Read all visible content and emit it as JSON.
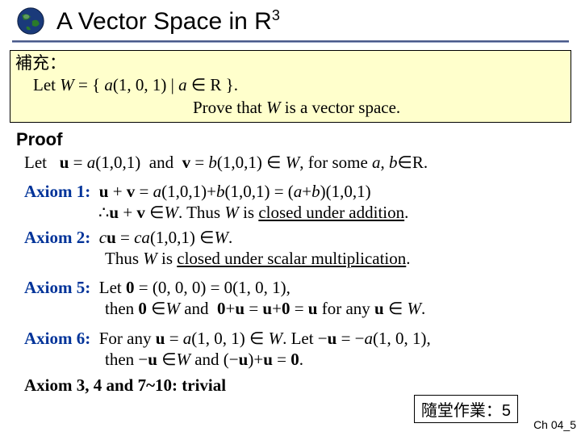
{
  "header": {
    "title_html": "A Vector Space in R<sup>3</sup>",
    "globe": {
      "ocean_color": "#1a3a7a",
      "land_color": "#2a7a2a",
      "shadow_color": "#0a1a3a"
    },
    "rule_color": "#4a5a8a"
  },
  "supplement": {
    "label": "補充：",
    "line1": "Let <span class='italic'>W</span> = { <span class='italic'>a</span>(1, 0, 1) | <span class='italic'>a</span> ∈ R }.",
    "line2": "Prove that <span class='italic'>W</span> is a vector space.",
    "bg_color": "#ffffcc"
  },
  "proof": {
    "label": "Proof",
    "let_line": "Let&nbsp;&nbsp; <span class='bold'>u</span> = <span class='italic'>a</span>(1,0,1) &nbsp;and&nbsp; <span class='bold'>v</span> = <span class='italic'>b</span>(1,0,1) ∈ <span class='italic'>W</span>, for some <span class='italic'>a</span>, <span class='italic'>b</span>∈R."
  },
  "axioms": {
    "a1": {
      "label": "Axiom 1:",
      "expr": "<span class='bold'>u</span> + <span class='bold'>v</span> = <span class='italic'>a</span>(1,0,1)+<span class='italic'>b</span>(1,0,1) = (<span class='italic'>a</span>+<span class='italic'>b</span>)(1,0,1)",
      "concl": "∴<span class='bold'>u</span> + <span class='bold'>v</span> ∈<span class='italic'>W</span>. Thus <span class='italic'>W</span> is <u>closed under addition</u>."
    },
    "a2": {
      "label": "Axiom 2:",
      "expr": "<span class='italic'>c</span><span class='bold'>u</span> = <span class='italic'>ca</span>(1,0,1) ∈<span class='italic'>W</span>.",
      "concl": "Thus <span class='italic'>W</span> is <u>closed under scalar multiplication</u>."
    },
    "a5": {
      "label": "Axiom 5:",
      "l1": "Let <span class='bold'>0</span> = (0, 0, 0) = 0(1, 0, 1),",
      "l2": "then <span class='bold'>0</span> ∈<span class='italic'>W</span> and &nbsp;<span class='bold'>0</span>+<span class='bold'>u</span> = <span class='bold'>u</span>+<span class='bold'>0</span> = <span class='bold'>u</span> for any <span class='bold'>u</span> ∈ <span class='italic'>W</span>."
    },
    "a6": {
      "label": "Axiom 6:",
      "l1": "For any <span class='bold'>u</span> = <span class='italic'>a</span>(1, 0, 1) ∈ <span class='italic'>W</span>. Let −<span class='bold'>u</span> = −<span class='italic'>a</span>(1, 0, 1),",
      "l2": "then −<span class='bold'>u</span> ∈<span class='italic'>W</span> and (−<span class='bold'>u</span>)+<span class='bold'>u</span> = <span class='bold'>0</span>."
    },
    "rest": "Axiom 3, 4 and 7~10: trivial"
  },
  "homework": {
    "text": "隨堂作業：5"
  },
  "footer": {
    "text": "Ch 04_5"
  },
  "colors": {
    "axiom_label": "#003399",
    "text": "#000000",
    "bg": "#ffffff"
  }
}
